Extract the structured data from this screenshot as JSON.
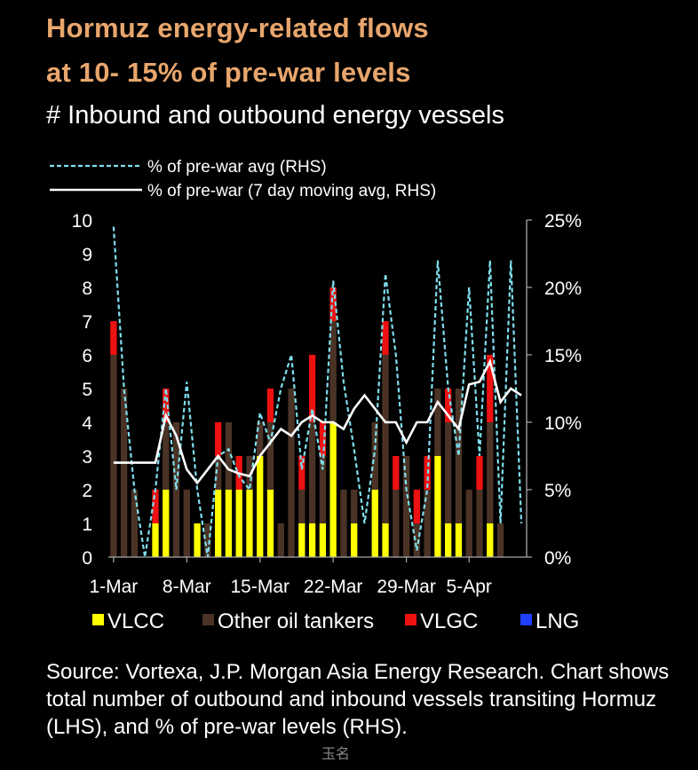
{
  "title_line1": "Hormuz  energy-related  flows",
  "title_line2": "at  10- 15% of pre-war levels",
  "subtitle": "# Inbound and outbound energy vessels",
  "source_lines": [
    "Source: Vortexa, J.P. Morgan Asia Energy Research. Chart shows",
    "total number of outbound and inbound vessels transiting Hormuz",
    "(LHS), and % of pre-war levels (RHS)."
  ],
  "watermark": "玉名",
  "colors": {
    "title": "#e8a66d",
    "vlcc": "#ffff00",
    "other": "#4a3326",
    "vlgc": "#ee1111",
    "lng": "#1f3fff",
    "dashed": "#7ee0ee",
    "ma": "#ffffff"
  },
  "chart_data": {
    "type": "bar",
    "stacked": true,
    "x_tick_labels": [
      "1-Mar",
      "8-Mar",
      "15-Mar",
      "22-Mar",
      "29-Mar",
      "5-Apr"
    ],
    "x_tick_indices": [
      0,
      7,
      14,
      21,
      28,
      34
    ],
    "n_days": 40,
    "ylim_left": [
      0,
      10
    ],
    "ylim_right": [
      0,
      25
    ],
    "left_ticks": [
      "0",
      "1",
      "2",
      "3",
      "4",
      "5",
      "6",
      "7",
      "8",
      "9",
      "10"
    ],
    "right_ticks": [
      "0%",
      "5%",
      "10%",
      "15%",
      "20%",
      "25%"
    ],
    "legend_lines": [
      {
        "name": "% of pre-war avg (RHS)",
        "style": "dashed"
      },
      {
        "name": "% of pre-war (7 day moving avg, RHS)",
        "style": "solid"
      }
    ],
    "legend_bars": [
      {
        "name": "VLCC",
        "key": "vlcc"
      },
      {
        "name": "Other oil tankers",
        "key": "other"
      },
      {
        "name": "VLGC",
        "key": "vlgc"
      },
      {
        "name": "LNG",
        "key": "lng"
      }
    ],
    "series": [
      {
        "name": "VLCC",
        "key": "vlcc",
        "values": [
          0,
          0,
          0,
          0,
          1,
          2,
          0,
          0,
          1,
          0,
          2,
          2,
          2,
          2,
          3,
          2,
          0,
          0,
          1,
          1,
          1,
          4,
          0,
          1,
          0,
          2,
          1,
          0,
          0,
          0,
          0,
          3,
          1,
          1,
          0,
          0,
          1,
          0,
          0,
          0
        ]
      },
      {
        "name": "Other oil tankers",
        "key": "other",
        "values": [
          6,
          5,
          2,
          0,
          0,
          2,
          4,
          2,
          0,
          1,
          1,
          2,
          0,
          1,
          1,
          2,
          1,
          5,
          1,
          3,
          2,
          3,
          2,
          1,
          0,
          2,
          5,
          2,
          3,
          1,
          2,
          2,
          3,
          4,
          2,
          2,
          3,
          1,
          0,
          0
        ]
      },
      {
        "name": "VLGC",
        "key": "vlgc",
        "values": [
          1,
          0,
          0,
          0,
          1,
          1,
          0,
          0,
          0,
          0,
          1,
          0,
          1,
          0,
          0,
          1,
          0,
          0,
          1,
          2,
          1,
          1,
          0,
          0,
          0,
          0,
          1,
          1,
          0,
          1,
          1,
          0,
          1,
          0,
          0,
          1,
          2,
          0,
          0,
          0
        ]
      },
      {
        "name": "LNG",
        "key": "lng",
        "values": [
          0,
          0,
          0,
          0,
          0,
          0,
          0,
          0,
          0,
          0,
          0,
          0,
          0,
          0,
          0,
          0,
          0,
          0,
          0,
          0,
          0,
          0,
          0,
          0,
          0,
          0,
          0,
          0,
          0,
          0,
          0,
          0,
          0,
          0,
          0,
          0,
          0,
          0,
          0,
          0
        ]
      }
    ],
    "line_series": [
      {
        "name": "% of pre-war avg (RHS)",
        "style": "dashed",
        "values": [
          24.5,
          12.5,
          5,
          0,
          5,
          12.5,
          5,
          13,
          5,
          0,
          7.5,
          8,
          6,
          5,
          10.7,
          8.5,
          12.5,
          15,
          6.5,
          11,
          6.5,
          20.5,
          13,
          8,
          2.5,
          8,
          21,
          15,
          5,
          0.5,
          5,
          22,
          12.5,
          7.5,
          20,
          7.5,
          22,
          2.5,
          22,
          2.5
        ]
      },
      {
        "name": "% of pre-war (7 day moving avg, RHS)",
        "style": "solid",
        "values": [
          7,
          7,
          7,
          7,
          7,
          10.5,
          9,
          6.5,
          5.5,
          6.5,
          7.5,
          6.5,
          6.2,
          6,
          7.5,
          8.5,
          9.5,
          9,
          10,
          10.5,
          10,
          10,
          9.5,
          11,
          12,
          11,
          10,
          10,
          8.5,
          10,
          10,
          11.5,
          10.5,
          9.5,
          12.8,
          13,
          14.5,
          11.5,
          12.5,
          12
        ]
      }
    ]
  }
}
